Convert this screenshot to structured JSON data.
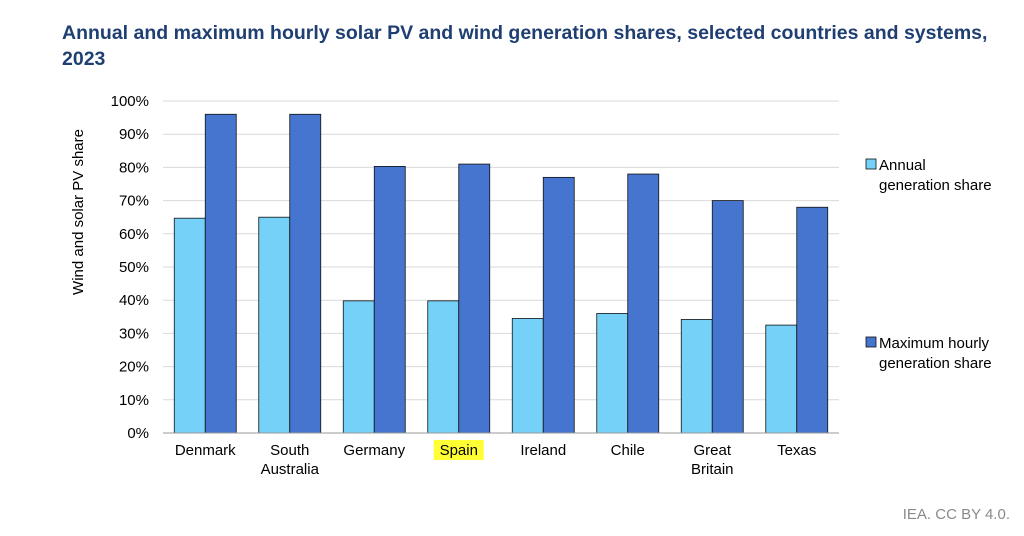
{
  "title": "Annual and maximum hourly solar PV and wind generation shares, selected countries and systems, 2023",
  "credit": "IEA. CC BY 4.0.",
  "colors": {
    "annual": "#75d1f7",
    "maximum": "#4575cf",
    "bar_stroke": "#111111",
    "grid": "#d9d9d9",
    "highlight": "#ffff33"
  },
  "chart_data": {
    "type": "bar",
    "ylabel": "Wind and solar PV share",
    "ylim": [
      0,
      100
    ],
    "y_ticks": [
      "0%",
      "10%",
      "20%",
      "30%",
      "40%",
      "50%",
      "60%",
      "70%",
      "80%",
      "90%",
      "100%"
    ],
    "categories": [
      [
        "Denmark"
      ],
      [
        "South",
        "Australia"
      ],
      [
        "Germany"
      ],
      [
        "Spain"
      ],
      [
        "Ireland"
      ],
      [
        "Chile"
      ],
      [
        "Great",
        "Britain"
      ],
      [
        "Texas"
      ]
    ],
    "highlighted_category": "Spain",
    "series": [
      {
        "name": [
          "Annual",
          "generation share"
        ],
        "values": [
          64.7,
          65.0,
          39.8,
          39.8,
          34.5,
          36.0,
          34.2,
          32.5
        ]
      },
      {
        "name": [
          "Maximum hourly",
          "generation share"
        ],
        "values": [
          96.0,
          96.0,
          80.3,
          81.0,
          77.0,
          78.0,
          70.0,
          68.0
        ]
      }
    ],
    "grid": true,
    "legend_position": "right"
  }
}
